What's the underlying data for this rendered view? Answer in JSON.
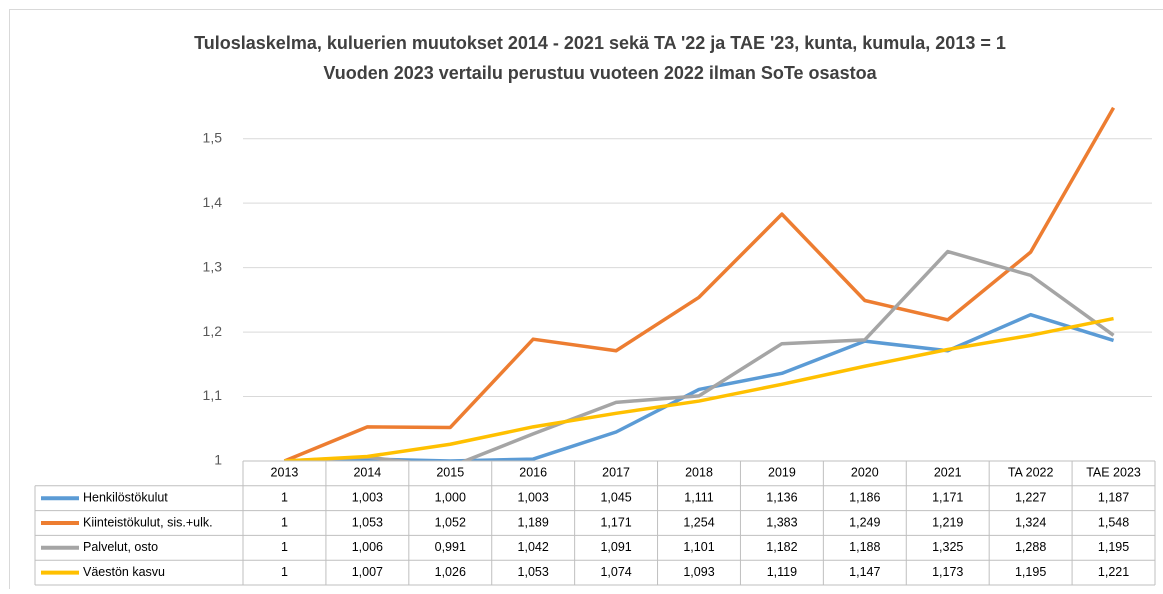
{
  "chart_data": {
    "type": "line",
    "title": "Tuloslaskelma, kuluerien muutokset 2014 - 2021 sekä TA '22 ja TAE '23, kunta, kumula, 2013 = 1",
    "subtitle": "Vuoden 2023 vertailu perustuu vuoteen 2022 ilman SoTe osastoa",
    "categories": [
      "2013",
      "2014",
      "2015",
      "2016",
      "2017",
      "2018",
      "2019",
      "2020",
      "2021",
      "TA 2022",
      "TAE 2023"
    ],
    "ylim": [
      1,
      1.55
    ],
    "yticks": [
      1,
      {
        "value": 1.1,
        "label": "1,1"
      },
      {
        "value": 1.2,
        "label": "1,2"
      },
      {
        "value": 1.3,
        "label": "1,3"
      },
      {
        "value": 1.4,
        "label": "1,4"
      },
      {
        "value": 1.5,
        "label": "1,5"
      }
    ],
    "grid": true,
    "series": [
      {
        "name": "Henkilöstökulut",
        "color": "#5b9bd5",
        "values": [
          1,
          1.003,
          1.0,
          1.003,
          1.045,
          1.111,
          1.136,
          1.186,
          1.171,
          1.227,
          1.187
        ],
        "value_labels": [
          "1",
          "1,003",
          "1,000",
          "1,003",
          "1,045",
          "1,111",
          "1,136",
          "1,186",
          "1,171",
          "1,227",
          "1,187"
        ]
      },
      {
        "name": "Kiinteistökulut, sis.+ulk.",
        "color": "#ed7d31",
        "values": [
          1,
          1.053,
          1.052,
          1.189,
          1.171,
          1.254,
          1.383,
          1.249,
          1.219,
          1.324,
          1.548
        ],
        "value_labels": [
          "1",
          "1,053",
          "1,052",
          "1,189",
          "1,171",
          "1,254",
          "1,383",
          "1,249",
          "1,219",
          "1,324",
          "1,548"
        ]
      },
      {
        "name": "Palvelut, osto",
        "color": "#a5a5a5",
        "values": [
          1,
          1.006,
          0.991,
          1.042,
          1.091,
          1.101,
          1.182,
          1.188,
          1.325,
          1.288,
          1.195
        ],
        "value_labels": [
          "1",
          "1,006",
          "0,991",
          "1,042",
          "1,091",
          "1,101",
          "1,182",
          "1,188",
          "1,325",
          "1,288",
          "1,195"
        ]
      },
      {
        "name": "Väestön kasvu",
        "color": "#ffc000",
        "values": [
          1,
          1.007,
          1.026,
          1.053,
          1.074,
          1.093,
          1.119,
          1.147,
          1.173,
          1.195,
          1.221
        ],
        "value_labels": [
          "1",
          "1,007",
          "1,026",
          "1,053",
          "1,074",
          "1,093",
          "1,119",
          "1,147",
          "1,173",
          "1,195",
          "1,221"
        ]
      }
    ]
  }
}
